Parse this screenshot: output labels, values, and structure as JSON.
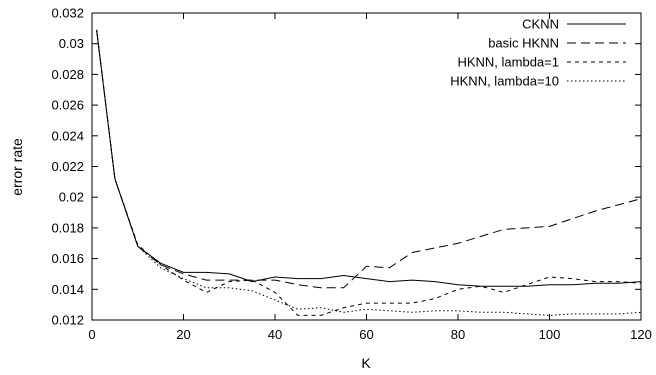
{
  "chart_data": {
    "type": "line",
    "title": "",
    "xlabel": "K",
    "ylabel": "error rate",
    "xlim": [
      0,
      120
    ],
    "ylim": [
      0.012,
      0.032
    ],
    "xticks": [
      0,
      20,
      40,
      60,
      80,
      100,
      120
    ],
    "yticks": [
      0.012,
      0.014,
      0.016,
      0.018,
      0.02,
      0.022,
      0.024,
      0.026,
      0.028,
      0.03,
      0.032
    ],
    "ytick_labels": [
      "0.012",
      "0.014",
      "0.016",
      "0.018",
      "0.02",
      "0.022",
      "0.024",
      "0.026",
      "0.028",
      "0.03",
      "0.032"
    ],
    "grid": false,
    "legend_position": "top-right",
    "series": [
      {
        "name": "CKNN",
        "dash": "solid",
        "x": [
          1,
          5,
          10,
          15,
          20,
          25,
          30,
          35,
          40,
          45,
          50,
          55,
          60,
          65,
          70,
          75,
          80,
          85,
          90,
          95,
          100,
          105,
          110,
          115,
          120
        ],
        "y": [
          0.0309,
          0.0212,
          0.0168,
          0.0157,
          0.0151,
          0.0151,
          0.015,
          0.0145,
          0.0148,
          0.0147,
          0.0147,
          0.0149,
          0.0147,
          0.0145,
          0.0146,
          0.0145,
          0.0143,
          0.0142,
          0.0142,
          0.0142,
          0.0143,
          0.0143,
          0.0144,
          0.0144,
          0.0145
        ]
      },
      {
        "name": "basic HKNN",
        "dash": "dashed",
        "x": [
          1,
          5,
          10,
          15,
          20,
          25,
          30,
          35,
          40,
          45,
          50,
          55,
          60,
          65,
          70,
          80,
          90,
          100,
          110,
          120
        ],
        "y": [
          0.0309,
          0.0212,
          0.0168,
          0.0156,
          0.015,
          0.0146,
          0.0146,
          0.0146,
          0.0146,
          0.0143,
          0.0141,
          0.0141,
          0.0155,
          0.0154,
          0.0164,
          0.017,
          0.0179,
          0.0181,
          0.0191,
          0.0199
        ]
      },
      {
        "name": "HKNN, lambda=1",
        "dash": "short-dash",
        "x": [
          1,
          5,
          10,
          15,
          20,
          25,
          30,
          35,
          40,
          45,
          50,
          55,
          60,
          65,
          70,
          75,
          80,
          85,
          90,
          95,
          100,
          105,
          110,
          115,
          120
        ],
        "y": [
          0.0309,
          0.0212,
          0.0169,
          0.0156,
          0.0146,
          0.0138,
          0.0145,
          0.0146,
          0.0138,
          0.0123,
          0.0123,
          0.0128,
          0.0131,
          0.0131,
          0.0131,
          0.0134,
          0.014,
          0.0142,
          0.0138,
          0.0143,
          0.0148,
          0.0147,
          0.0145,
          0.0145,
          0.0144
        ]
      },
      {
        "name": "HKNN, lambda=10",
        "dash": "dotted",
        "x": [
          1,
          5,
          10,
          15,
          20,
          25,
          30,
          35,
          40,
          45,
          50,
          55,
          60,
          65,
          70,
          75,
          80,
          85,
          90,
          95,
          100,
          105,
          110,
          115,
          120
        ],
        "y": [
          0.0309,
          0.0212,
          0.0168,
          0.0154,
          0.0147,
          0.0141,
          0.0141,
          0.0139,
          0.0133,
          0.0127,
          0.0128,
          0.0125,
          0.0127,
          0.0126,
          0.0125,
          0.0126,
          0.0126,
          0.0125,
          0.0125,
          0.0124,
          0.0123,
          0.0124,
          0.0124,
          0.0124,
          0.0125
        ]
      }
    ]
  }
}
